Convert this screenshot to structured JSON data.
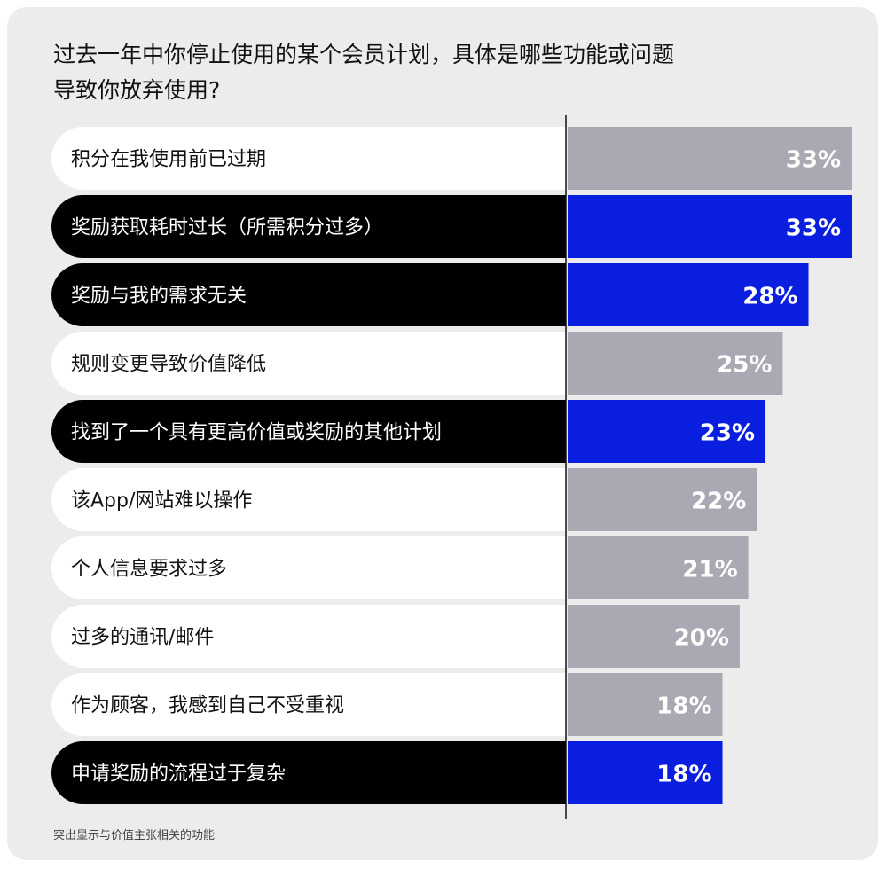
{
  "title_lines": [
    "过去一年中你停止使用的某个会员计划，具体是哪些功能或问题",
    "导致你放弃使用?"
  ],
  "footnote": "突出显示与价值主张相关的功能",
  "colors": {
    "highlight_bar": "#0a1ee0",
    "normal_bar": "#a9a9b4",
    "highlight_label_bg": "#000000",
    "normal_label_bg": "#ffffff",
    "divider": "#111111"
  },
  "chart_data": {
    "type": "bar",
    "orientation": "horizontal",
    "categories": [
      "积分在我使用前已过期",
      "奖励获取耗时过长（所需积分过多）",
      "奖励与我的需求无关",
      "规则变更导致价值降低",
      "找到了一个具有更高价值或奖励的其他计划",
      "该App/网站难以操作",
      "个人信息要求过多",
      "过多的通讯/邮件",
      "作为顾客，我感到自己不受重视",
      "申请奖励的流程过于复杂"
    ],
    "values": [
      33,
      33,
      28,
      25,
      23,
      22,
      21,
      20,
      18,
      18
    ],
    "value_labels": [
      "33%",
      "33%",
      "28%",
      "25%",
      "23%",
      "22%",
      "21%",
      "20%",
      "18%",
      "18%"
    ],
    "highlighted": [
      false,
      true,
      true,
      false,
      true,
      false,
      false,
      false,
      false,
      true
    ],
    "xlim": [
      0,
      33
    ],
    "unit": "%"
  }
}
